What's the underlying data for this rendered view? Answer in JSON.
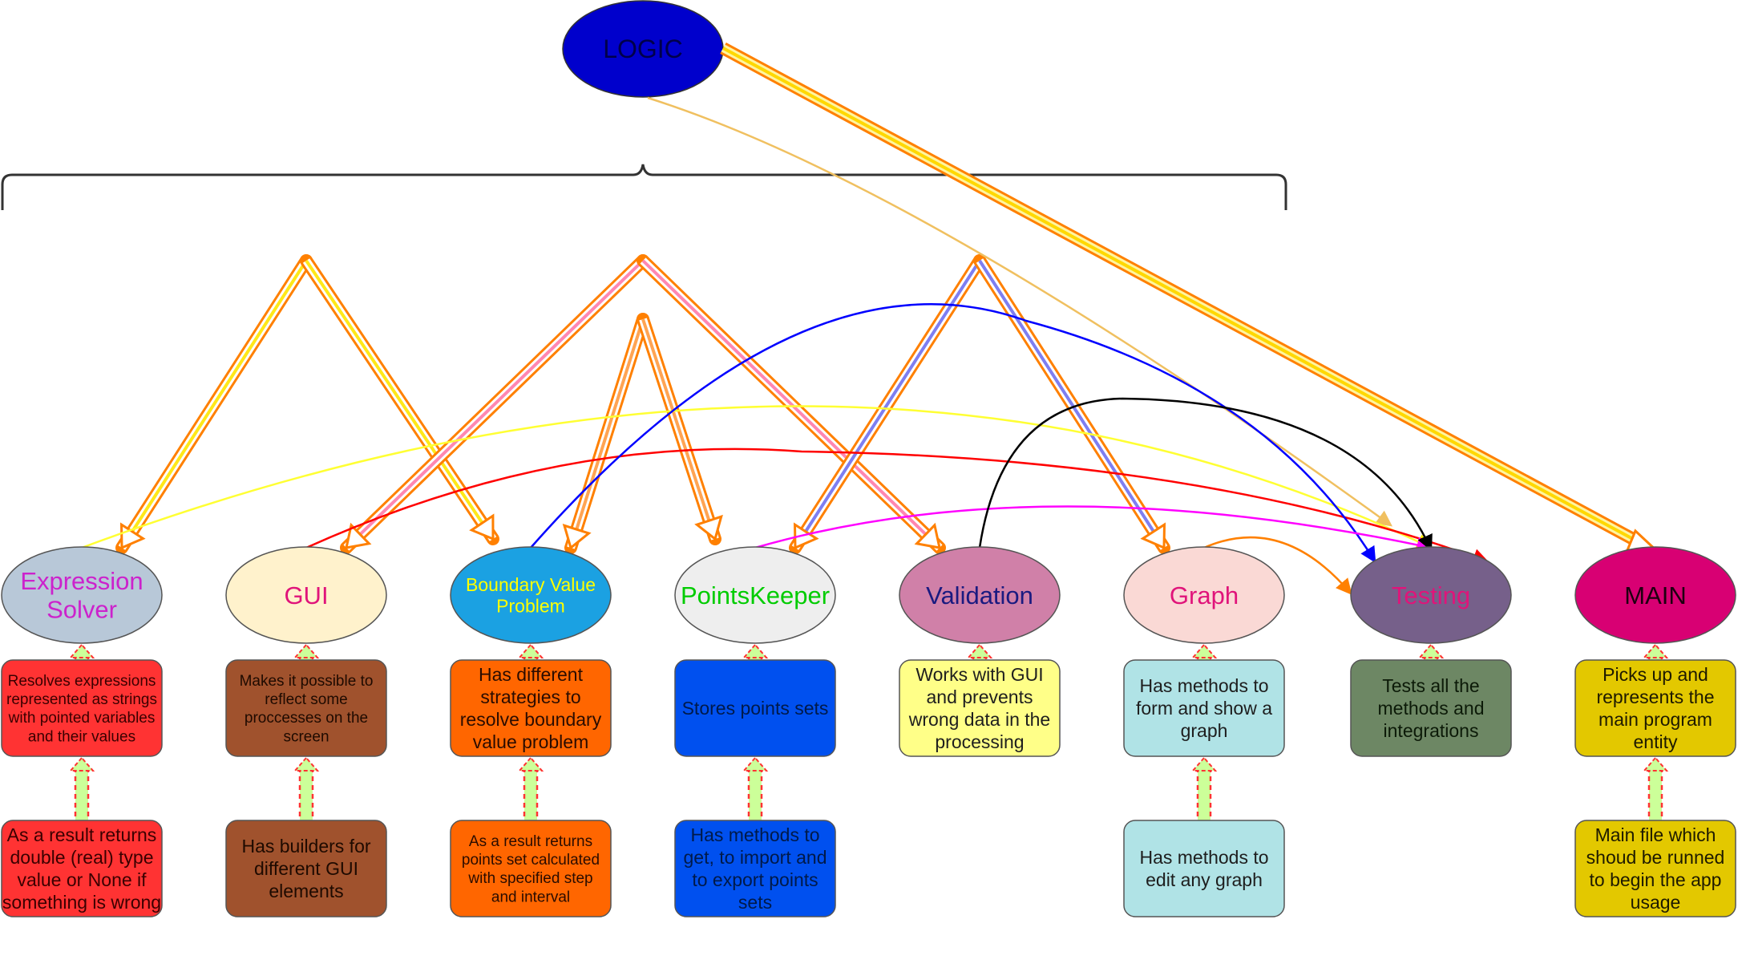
{
  "root": {
    "label": "LOGIC",
    "fill": "#0000CC",
    "text_color": "#00004A"
  },
  "modules": [
    {
      "id": "expression-solver",
      "lines": [
        "Expression",
        "Solver"
      ],
      "fill": "#B8C8D8",
      "text_color": "#CC22CC",
      "boxes": [
        {
          "lines": [
            "Resolves expressions",
            "represented as strings",
            "with pointed variables",
            "and their values"
          ],
          "fill": "#FF3333",
          "text_color": "#3A0000"
        },
        {
          "lines": [
            "As a result returns",
            "double (real) type",
            "value or None if",
            "something is wrong"
          ],
          "fill": "#FF3333",
          "text_color": "#3A0000"
        }
      ]
    },
    {
      "id": "gui",
      "lines": [
        "GUI"
      ],
      "fill": "#FFF2CC",
      "text_color": "#E0147A",
      "boxes": [
        {
          "lines": [
            "Makes it possible to",
            "reflect some",
            "proccesses on the",
            "screen"
          ],
          "fill": "#A0522D",
          "text_color": "#1E0A00"
        },
        {
          "lines": [
            "Has builders for",
            "different GUI",
            "elements"
          ],
          "fill": "#A0522D",
          "text_color": "#1E0A00"
        }
      ]
    },
    {
      "id": "boundary-value-problem",
      "lines": [
        "Boundary Value",
        "Problem"
      ],
      "fill": "#1BA1E2",
      "text_color": "#FFFF00",
      "boxes": [
        {
          "lines": [
            "Has different",
            "strategies to",
            "resolve boundary",
            "value problem"
          ],
          "fill": "#FF6600",
          "text_color": "#2A0C00"
        },
        {
          "lines": [
            "As a result returns",
            "points set calculated",
            "with specified step",
            "and interval"
          ],
          "fill": "#FF6600",
          "text_color": "#2A0C00"
        }
      ]
    },
    {
      "id": "points-keeper",
      "lines": [
        "PointsKeeper"
      ],
      "fill": "#EEEEEE",
      "text_color": "#00CC00",
      "boxes": [
        {
          "lines": [
            "Stores points sets"
          ],
          "fill": "#0050EF",
          "text_color": "#001A4A"
        },
        {
          "lines": [
            "Has methods to",
            "get, to import and",
            "to export points",
            "sets"
          ],
          "fill": "#0050EF",
          "text_color": "#001A4A"
        }
      ]
    },
    {
      "id": "validation",
      "lines": [
        "Validation"
      ],
      "fill": "#D080A8",
      "text_color": "#1A1A80",
      "boxes": [
        {
          "lines": [
            "Works with GUI",
            "and prevents",
            "wrong data in the",
            "processing"
          ],
          "fill": "#FFFF88",
          "text_color": "#1E1E1E"
        }
      ]
    },
    {
      "id": "graph",
      "lines": [
        "Graph"
      ],
      "fill": "#FAD9D5",
      "text_color": "#E0147A",
      "boxes": [
        {
          "lines": [
            "Has methods to",
            "form and show a",
            "graph"
          ],
          "fill": "#B0E3E6",
          "text_color": "#1E1E1E"
        },
        {
          "lines": [
            "Has methods to",
            "edit any graph"
          ],
          "fill": "#B0E3E6",
          "text_color": "#1E1E1E"
        }
      ]
    },
    {
      "id": "testing",
      "lines": [
        "Testing"
      ],
      "fill": "#76608A",
      "text_color": "#E0147A",
      "boxes": [
        {
          "lines": [
            "Tests all the",
            "methods and",
            "integrations"
          ],
          "fill": "#6D8764",
          "text_color": "#0C1A08"
        }
      ]
    },
    {
      "id": "main",
      "lines": [
        "MAIN"
      ],
      "fill": "#D80073",
      "text_color": "#1E0010",
      "boxes": [
        {
          "lines": [
            "Picks up and",
            "represents the",
            "main program",
            "entity"
          ],
          "fill": "#E3C800",
          "text_color": "#1E1A00"
        },
        {
          "lines": [
            "Main file which",
            "shoud be runned",
            "to begin the app",
            "usage"
          ],
          "fill": "#E3C800",
          "text_color": "#1E1A00"
        }
      ]
    }
  ],
  "colors": {
    "bracket": "#333333",
    "arrow_outline": "#FF8000",
    "testing_links": [
      "#FFFF33",
      "#FF0000",
      "#0000FF",
      "#FF00FF",
      "#000000",
      "#FF8000"
    ],
    "dashed_connector": "#FF3333",
    "dashed_fill": "#CCFF99"
  }
}
